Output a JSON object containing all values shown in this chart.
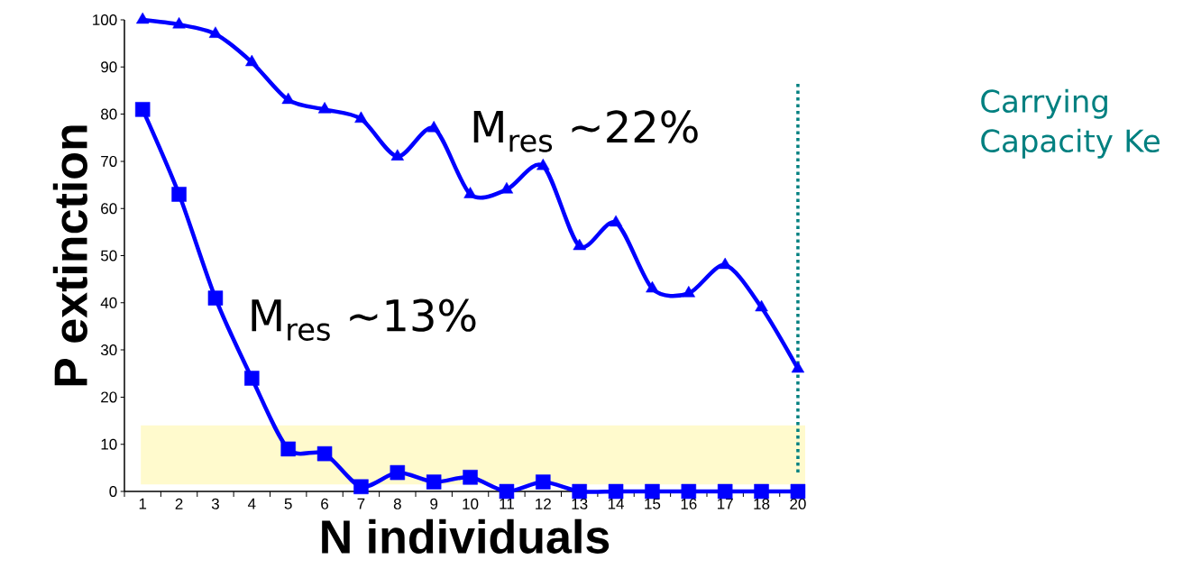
{
  "chart_data": {
    "type": "line",
    "xlabel": "N individuals",
    "ylabel": "P extinction",
    "categories": [
      "1",
      "2",
      "3",
      "4",
      "5",
      "6",
      "7",
      "8",
      "9",
      "10",
      "11",
      "12",
      "13",
      "14",
      "15",
      "16",
      "17",
      "18",
      "20"
    ],
    "ylim": [
      0,
      100
    ],
    "yticks": [
      0,
      10,
      20,
      30,
      40,
      50,
      60,
      70,
      80,
      90,
      100
    ],
    "grid": false,
    "series": [
      {
        "color": "#0000ff",
        "marker": "triangle",
        "values": [
          100,
          99,
          97,
          91,
          83,
          81,
          79,
          71,
          77,
          63,
          64,
          69,
          52,
          57,
          43,
          42,
          48,
          39,
          26
        ]
      },
      {
        "color": "#0000ff",
        "marker": "square",
        "values": [
          81,
          63,
          41,
          24,
          9,
          8,
          1,
          4,
          2,
          3,
          0,
          2,
          0,
          0,
          0,
          0,
          0,
          0,
          0
        ]
      }
    ],
    "bands": [
      {
        "axis": "y",
        "from": 1.5,
        "to": 14,
        "color": "#fffacd"
      }
    ],
    "ref_lines": [
      {
        "axis": "x",
        "value": "20",
        "label": "Carrying Capacity Ke",
        "color": "#008080",
        "line_style": "dotted"
      }
    ],
    "annotations": [
      "M$_{res}$ ~22%",
      "M$_{res}$ ~13%"
    ]
  }
}
